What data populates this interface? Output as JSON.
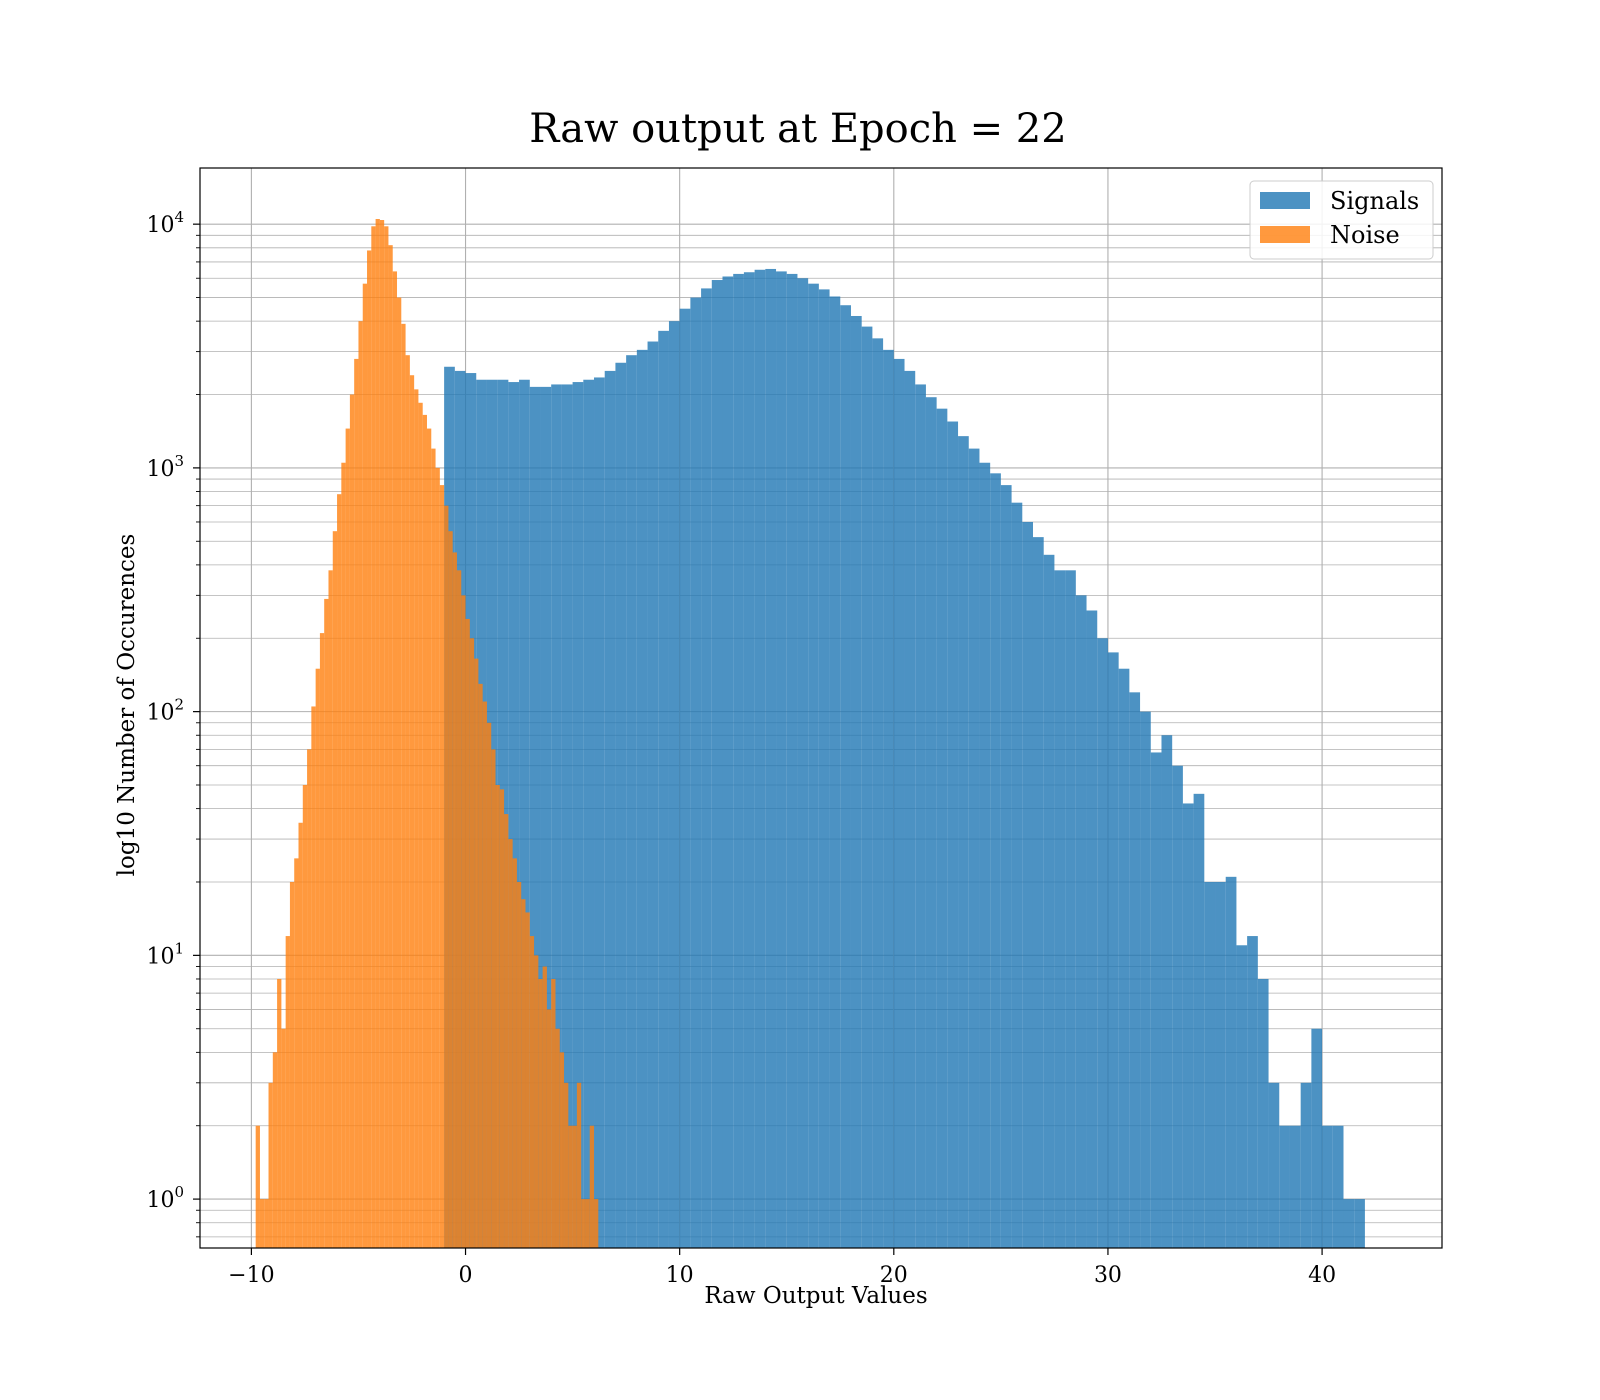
{
  "chart_data": {
    "type": "histogram",
    "title": "Raw output at Epoch = 22",
    "xlabel": "Raw Output Values",
    "ylabel": "log10 Number of Occurences",
    "yscale": "log",
    "xlim": [
      -12.4,
      45.6
    ],
    "ylim": [
      0.63,
      17000
    ],
    "x_ticks": [
      -10,
      0,
      10,
      20,
      30,
      40
    ],
    "x_tick_labels": [
      "−10",
      "0",
      "10",
      "20",
      "30",
      "40"
    ],
    "y_ticks": [
      1,
      10,
      100,
      1000,
      10000
    ],
    "y_tick_base": "10",
    "y_tick_exponents": [
      "0",
      "1",
      "2",
      "3",
      "4"
    ],
    "grid": true,
    "legend_position": "top-right",
    "series": [
      {
        "name": "Signals",
        "color": "#1f77b4",
        "alpha": 0.8,
        "x_start": -9.0,
        "bin_width": 0.5,
        "counts": [
          0,
          0,
          0,
          0,
          0,
          0,
          0,
          0,
          0,
          0,
          0,
          0,
          0,
          0,
          0,
          0,
          2600,
          2500,
          2450,
          2300,
          2300,
          2300,
          2250,
          2300,
          2150,
          2150,
          2200,
          2200,
          2250,
          2300,
          2350,
          2500,
          2700,
          2900,
          3050,
          3300,
          3650,
          4000,
          4500,
          5000,
          5450,
          5900,
          6100,
          6250,
          6350,
          6500,
          6550,
          6400,
          6250,
          6000,
          5700,
          5400,
          5050,
          4650,
          4200,
          3800,
          3400,
          3050,
          2800,
          2500,
          2200,
          1950,
          1750,
          1550,
          1350,
          1200,
          1050,
          950,
          850,
          720,
          600,
          520,
          440,
          380,
          380,
          300,
          260,
          200,
          175,
          150,
          120,
          100,
          68,
          80,
          60,
          42,
          46,
          20,
          20,
          21,
          11,
          12,
          8,
          3,
          2,
          2,
          3,
          5,
          2,
          2,
          1,
          1
        ]
      },
      {
        "name": "Noise",
        "color": "#ff7f0e",
        "alpha": 0.8,
        "x_start": -9.8,
        "bin_width": 0.2,
        "counts": [
          2,
          1,
          1,
          3,
          4,
          8,
          5,
          12,
          20,
          25,
          35,
          50,
          70,
          105,
          150,
          210,
          290,
          380,
          550,
          780,
          1050,
          1450,
          2000,
          2800,
          4000,
          5700,
          7800,
          9800,
          10500,
          10400,
          9800,
          8200,
          6400,
          5000,
          3900,
          2900,
          2400,
          2100,
          1850,
          1650,
          1450,
          1200,
          1000,
          850,
          700,
          550,
          450,
          380,
          300,
          240,
          200,
          165,
          130,
          110,
          90,
          70,
          50,
          48,
          38,
          30,
          25,
          20,
          17,
          15,
          12,
          10,
          8,
          9,
          6,
          8,
          5,
          4,
          3,
          2,
          2,
          3,
          1,
          1,
          2,
          1
        ]
      }
    ]
  }
}
